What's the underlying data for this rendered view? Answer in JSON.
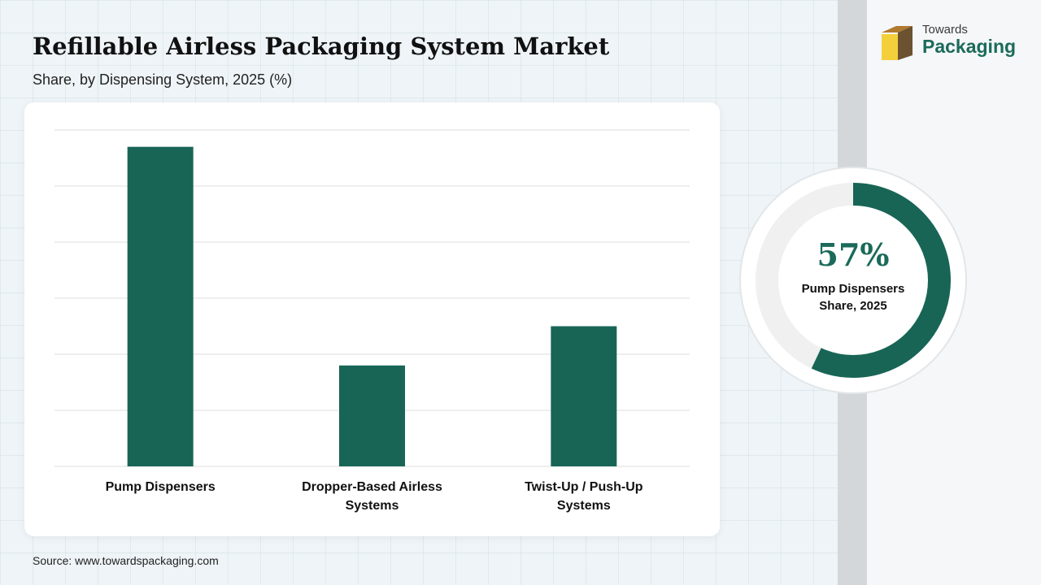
{
  "header": {
    "title": "Refillable Airless Packaging System Market",
    "subtitle": "Share, by Dispensing System, 2025 (%)"
  },
  "chart_data": {
    "type": "bar",
    "categories": [
      "Pump Dispensers",
      "Dropper-Based Airless Systems",
      "Twist-Up / Push-Up Systems"
    ],
    "values": [
      57,
      18,
      25
    ],
    "ylim": [
      0,
      60
    ],
    "grid": true,
    "color": "#186556"
  },
  "highlight": {
    "value": 57,
    "percent_text": "57%",
    "label_line1": "Pump Dispensers",
    "label_line2": "Share, 2025",
    "fill_color": "#186556",
    "track_color": "#f0f0f0"
  },
  "source": "Source: www.towardspackaging.com",
  "logo": {
    "line1": "Towards",
    "line2": "Packaging",
    "icon": "box-icon"
  }
}
